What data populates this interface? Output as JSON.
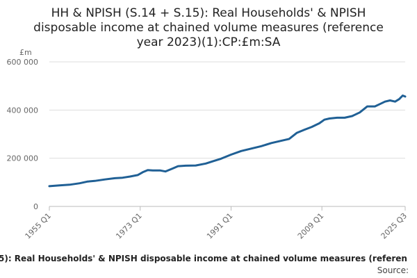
{
  "chart_data": {
    "type": "line",
    "title_lines": [
      "HH & NPISH (S.14 + S.15): Real Households' & NPISH",
      "disposable income at chained volume measures (reference",
      "year 2023)(1):CP:£m:SA"
    ],
    "ylabel": "£m",
    "ylim": [
      0,
      600000
    ],
    "y_ticks": [
      {
        "value": 0,
        "label": "0"
      },
      {
        "value": 200000,
        "label": "200 000"
      },
      {
        "value": 400000,
        "label": "400 000"
      },
      {
        "value": 600000,
        "label": "600 000"
      }
    ],
    "xlim": [
      1955,
      2025.5
    ],
    "x_ticks": [
      {
        "value": 1955,
        "label": "1955 Q1"
      },
      {
        "value": 1973,
        "label": "1973 Q1"
      },
      {
        "value": 1991,
        "label": "1991 Q1"
      },
      {
        "value": 2009,
        "label": "2009 Q1"
      },
      {
        "value": 2025.5,
        "label": "2025 Q3"
      }
    ],
    "grid": true,
    "legend": "none",
    "line_color": "#206095",
    "series": [
      {
        "points": [
          [
            1955,
            84000
          ],
          [
            1957,
            87000
          ],
          [
            1959,
            90000
          ],
          [
            1961,
            96000
          ],
          [
            1962.5,
            103000
          ],
          [
            1964,
            106000
          ],
          [
            1966,
            112000
          ],
          [
            1968,
            117000
          ],
          [
            1969.5,
            119000
          ],
          [
            1971,
            124000
          ],
          [
            1972.5,
            130000
          ],
          [
            1973.5,
            142000
          ],
          [
            1974.5,
            151000
          ],
          [
            1975.5,
            149000
          ],
          [
            1977,
            149000
          ],
          [
            1978,
            145000
          ],
          [
            1979.5,
            158000
          ],
          [
            1980.5,
            167000
          ],
          [
            1982,
            169000
          ],
          [
            1984,
            170000
          ],
          [
            1986,
            178000
          ],
          [
            1987.5,
            188000
          ],
          [
            1989,
            198000
          ],
          [
            1991,
            215000
          ],
          [
            1993,
            230000
          ],
          [
            1995,
            240000
          ],
          [
            1997,
            250000
          ],
          [
            1999,
            263000
          ],
          [
            2001,
            273000
          ],
          [
            2002.5,
            280000
          ],
          [
            2004,
            305000
          ],
          [
            2005.5,
            318000
          ],
          [
            2007,
            330000
          ],
          [
            2008.5,
            345000
          ],
          [
            2009.5,
            360000
          ],
          [
            2010.5,
            365000
          ],
          [
            2012,
            368000
          ],
          [
            2013.5,
            368000
          ],
          [
            2015,
            375000
          ],
          [
            2016.5,
            390000
          ],
          [
            2018,
            415000
          ],
          [
            2019.5,
            415000
          ],
          [
            2020.5,
            425000
          ],
          [
            2021.5,
            435000
          ],
          [
            2022.5,
            440000
          ],
          [
            2023.5,
            435000
          ],
          [
            2024.3,
            445000
          ],
          [
            2025,
            460000
          ],
          [
            2025.5,
            456000
          ]
        ]
      }
    ]
  },
  "footer": {
    "text": "5): Real Households' & NPISH disposable income at chained volume measures (referen",
    "source": "Source:"
  }
}
